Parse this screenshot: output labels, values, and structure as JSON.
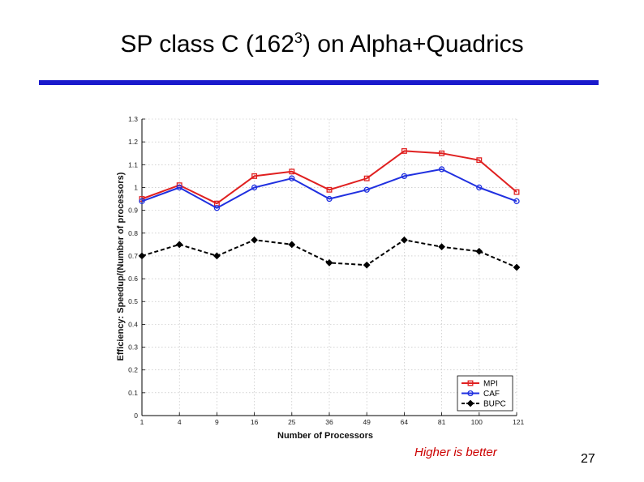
{
  "slide": {
    "title_main": "SP class C (162",
    "title_sup": "3",
    "title_tail": ") on Alpha+Quadrics",
    "note": "Higher is better",
    "page_number": "27",
    "rule_color": "#1a1acc",
    "note_color": "#cc0000"
  },
  "chart_data": {
    "type": "line",
    "title": "",
    "xlabel": "Number of Processors",
    "ylabel": "Efficiency: Speedup/(Number of processors)",
    "x_scale": "sqrt",
    "x": [
      1,
      4,
      9,
      16,
      25,
      36,
      49,
      64,
      81,
      100,
      121
    ],
    "x_tick_labels": [
      "1",
      "4",
      "9",
      "16",
      "25",
      "36",
      "49",
      "64",
      "81",
      "100",
      "121"
    ],
    "ylim": [
      0,
      1.3
    ],
    "y_ticks": [
      0,
      0.1,
      0.2,
      0.3,
      0.4,
      0.5,
      0.6,
      0.7,
      0.8,
      0.9,
      1,
      1.1,
      1.2,
      1.3
    ],
    "y_tick_labels": [
      "0",
      "0.1",
      "0.2",
      "0.3",
      "0.4",
      "0.5",
      "0.6",
      "0.7",
      "0.8",
      "0.9",
      "1",
      "1.1",
      "1.2",
      "1.3"
    ],
    "grid": true,
    "legend_position": "bottom-right",
    "series": [
      {
        "name": "MPI",
        "color": "#e02020",
        "marker": "square",
        "dash": "solid",
        "x": [
          1,
          4,
          9,
          16,
          25,
          36,
          49,
          64,
          81,
          100,
          121
        ],
        "values": [
          0.95,
          1.01,
          0.93,
          1.05,
          1.07,
          0.99,
          1.04,
          1.16,
          1.15,
          1.12,
          0.98
        ]
      },
      {
        "name": "CAF",
        "color": "#2030e0",
        "marker": "circle",
        "dash": "solid",
        "x": [
          1,
          4,
          9,
          16,
          25,
          36,
          49,
          64,
          81,
          100,
          121
        ],
        "values": [
          0.94,
          1.0,
          0.91,
          1.0,
          1.04,
          0.95,
          0.99,
          1.05,
          1.08,
          1.0,
          0.94
        ]
      },
      {
        "name": "BUPC",
        "color": "#000000",
        "marker": "diamond",
        "dash": "dashed",
        "x": [
          1,
          4,
          9,
          16,
          25,
          36,
          49,
          64,
          81,
          100,
          121
        ],
        "values": [
          0.7,
          0.75,
          0.7,
          0.77,
          0.75,
          0.67,
          0.66,
          0.77,
          0.74,
          0.72,
          0.65
        ]
      }
    ]
  }
}
